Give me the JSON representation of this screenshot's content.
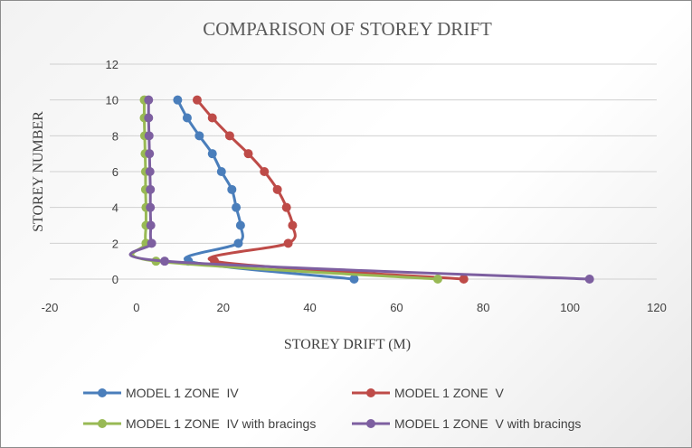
{
  "chart_data": {
    "type": "line",
    "title": "COMPARISON OF STOREY DRIFT",
    "xlabel": "STOREY DRIFT (M)",
    "ylabel": "STOREY NUMBER",
    "xlim": [
      -20,
      120
    ],
    "ylim": [
      0,
      12
    ],
    "xticks": [
      -20,
      0,
      20,
      40,
      60,
      80,
      100,
      120
    ],
    "yticks": [
      0,
      2,
      4,
      6,
      8,
      10,
      12
    ],
    "grid": true,
    "legend_position": "bottom",
    "series": [
      {
        "name": "MODEL 1 ZONE  IV",
        "color": "#4a7ebb",
        "points": [
          [
            50.2,
            0
          ],
          [
            12,
            1
          ],
          [
            23.5,
            2
          ],
          [
            24,
            3
          ],
          [
            23,
            4
          ],
          [
            22,
            5
          ],
          [
            19.6,
            6
          ],
          [
            17.5,
            7
          ],
          [
            14.5,
            8
          ],
          [
            11.7,
            9
          ],
          [
            9.5,
            10
          ]
        ]
      },
      {
        "name": "MODEL 1 ZONE  V",
        "color": "#be4b48",
        "points": [
          [
            75.5,
            0
          ],
          [
            18,
            1
          ],
          [
            35,
            2
          ],
          [
            36,
            3
          ],
          [
            34.6,
            4
          ],
          [
            32.5,
            5
          ],
          [
            29.5,
            6
          ],
          [
            25.8,
            7
          ],
          [
            21.5,
            8
          ],
          [
            17.5,
            9
          ],
          [
            14,
            10
          ]
        ]
      },
      {
        "name": "MODEL 1 ZONE  IV with bracings",
        "color": "#98b954",
        "points": [
          [
            69.5,
            0
          ],
          [
            4.5,
            1
          ],
          [
            2.2,
            2
          ],
          [
            2.2,
            3
          ],
          [
            2.2,
            4
          ],
          [
            2.1,
            5
          ],
          [
            2.1,
            6
          ],
          [
            2,
            7
          ],
          [
            1.9,
            8
          ],
          [
            1.8,
            9
          ],
          [
            1.8,
            10
          ]
        ]
      },
      {
        "name": "MODEL 1 ZONE  V with bracings",
        "color": "#7d5fa0",
        "points": [
          [
            104.5,
            0
          ],
          [
            6.5,
            1
          ],
          [
            3.5,
            2
          ],
          [
            3.3,
            3
          ],
          [
            3.2,
            4
          ],
          [
            3.2,
            5
          ],
          [
            3.1,
            6
          ],
          [
            3,
            7
          ],
          [
            2.9,
            8
          ],
          [
            2.8,
            9
          ],
          [
            2.8,
            10
          ]
        ]
      }
    ]
  }
}
